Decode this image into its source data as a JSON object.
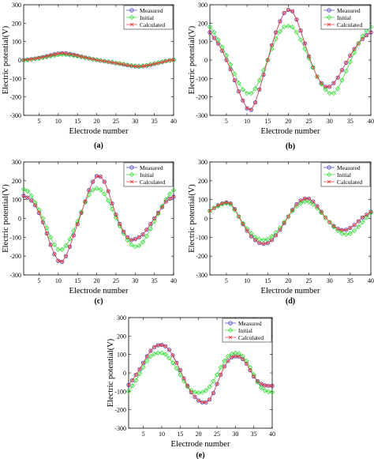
{
  "chart_data": [
    {
      "type": "line",
      "caption": "(a)",
      "xlabel": "Electrode number",
      "ylabel": "Electric potential(V)",
      "xlim": [
        1,
        40
      ],
      "ylim": [
        -300,
        300
      ],
      "xticks": [
        5,
        10,
        15,
        20,
        25,
        30,
        35,
        40
      ],
      "yticks": [
        -300,
        -200,
        -100,
        0,
        100,
        200,
        300
      ],
      "grid": false,
      "legend_position": "top-right",
      "series": [
        {
          "name": "Measured",
          "color": "#3f3fbf",
          "marker": "circle",
          "values": [
            0,
            2,
            5,
            8,
            12,
            16,
            21,
            26,
            31,
            35,
            37,
            36,
            33,
            29,
            24,
            19,
            14,
            9,
            5,
            1,
            -3,
            -6,
            -10,
            -13,
            -17,
            -20,
            -24,
            -28,
            -31,
            -34,
            -35,
            -33,
            -30,
            -26,
            -21,
            -16,
            -11,
            -6,
            -2,
            1
          ]
        },
        {
          "name": "Initial",
          "color": "#33dd33",
          "marker": "diamond",
          "values": [
            -2,
            0,
            3,
            6,
            9,
            13,
            17,
            21,
            25,
            28,
            30,
            29,
            27,
            24,
            20,
            16,
            12,
            8,
            4,
            1,
            -3,
            -6,
            -9,
            -12,
            -16,
            -19,
            -22,
            -26,
            -29,
            -32,
            -33,
            -31,
            -28,
            -24,
            -19,
            -15,
            -10,
            -6,
            -3,
            0
          ]
        },
        {
          "name": "Calculated",
          "color": "#ee3333",
          "marker": "x",
          "values": [
            0,
            2,
            5,
            8,
            12,
            16,
            21,
            26,
            31,
            35,
            37,
            36,
            33,
            29,
            24,
            19,
            14,
            9,
            5,
            1,
            -3,
            -6,
            -10,
            -13,
            -17,
            -20,
            -24,
            -28,
            -31,
            -34,
            -35,
            -33,
            -30,
            -26,
            -21,
            -16,
            -11,
            -6,
            -2,
            1
          ]
        }
      ]
    },
    {
      "type": "line",
      "caption": "(b)",
      "xlabel": "Electrode number",
      "ylabel": "Electric potential(V)",
      "xlim": [
        1,
        40
      ],
      "ylim": [
        -300,
        300
      ],
      "xticks": [
        5,
        10,
        15,
        20,
        25,
        30,
        35,
        40
      ],
      "yticks": [
        -300,
        -200,
        -100,
        0,
        100,
        200,
        300
      ],
      "grid": false,
      "legend_position": "top-right",
      "series": [
        {
          "name": "Measured",
          "color": "#3f3fbf",
          "marker": "circle",
          "values": [
            150,
            120,
            90,
            50,
            0,
            -50,
            -110,
            -170,
            -220,
            -262,
            -270,
            -230,
            -160,
            -80,
            0,
            80,
            150,
            210,
            255,
            272,
            265,
            220,
            160,
            90,
            20,
            -40,
            -90,
            -125,
            -145,
            -145,
            -125,
            -95,
            -55,
            -15,
            25,
            60,
            90,
            115,
            135,
            150
          ]
        },
        {
          "name": "Initial",
          "color": "#33dd33",
          "marker": "diamond",
          "values": [
            180,
            150,
            110,
            70,
            25,
            -25,
            -75,
            -125,
            -160,
            -180,
            -180,
            -155,
            -110,
            -55,
            0,
            60,
            115,
            155,
            180,
            185,
            178,
            150,
            110,
            60,
            10,
            -40,
            -90,
            -130,
            -160,
            -180,
            -180,
            -155,
            -110,
            -60,
            -10,
            40,
            90,
            130,
            160,
            180
          ]
        },
        {
          "name": "Calculated",
          "color": "#ee3333",
          "marker": "x",
          "values": [
            150,
            120,
            90,
            50,
            0,
            -50,
            -110,
            -170,
            -220,
            -262,
            -270,
            -230,
            -160,
            -80,
            0,
            80,
            150,
            210,
            255,
            272,
            265,
            220,
            160,
            90,
            20,
            -40,
            -90,
            -125,
            -145,
            -145,
            -125,
            -95,
            -55,
            -15,
            25,
            60,
            90,
            115,
            135,
            150
          ]
        }
      ]
    },
    {
      "type": "line",
      "caption": "(c)",
      "xlabel": "Electrode number",
      "ylabel": "Electric potential(V)",
      "xlim": [
        1,
        40
      ],
      "ylim": [
        -300,
        300
      ],
      "xticks": [
        5,
        10,
        15,
        20,
        25,
        30,
        35,
        40
      ],
      "yticks": [
        -300,
        -200,
        -100,
        0,
        100,
        200,
        300
      ],
      "grid": false,
      "legend_position": "top-right",
      "series": [
        {
          "name": "Measured",
          "color": "#3f3fbf",
          "marker": "circle",
          "values": [
            120,
            110,
            95,
            70,
            30,
            -20,
            -80,
            -140,
            -190,
            -225,
            -230,
            -200,
            -150,
            -90,
            -30,
            30,
            90,
            150,
            195,
            225,
            222,
            195,
            145,
            80,
            20,
            -30,
            -70,
            -100,
            -115,
            -110,
            -100,
            -85,
            -60,
            -30,
            0,
            30,
            60,
            90,
            105,
            115
          ]
        },
        {
          "name": "Initial",
          "color": "#33dd33",
          "marker": "diamond",
          "values": [
            155,
            145,
            120,
            85,
            45,
            0,
            -50,
            -100,
            -140,
            -165,
            -165,
            -145,
            -110,
            -65,
            -15,
            35,
            85,
            125,
            150,
            160,
            152,
            130,
            95,
            50,
            5,
            -40,
            -80,
            -115,
            -140,
            -150,
            -145,
            -125,
            -95,
            -55,
            -15,
            25,
            65,
            100,
            130,
            150
          ]
        },
        {
          "name": "Calculated",
          "color": "#ee3333",
          "marker": "x",
          "values": [
            120,
            110,
            95,
            70,
            30,
            -20,
            -80,
            -140,
            -190,
            -225,
            -230,
            -200,
            -150,
            -90,
            -30,
            30,
            90,
            150,
            195,
            225,
            222,
            195,
            145,
            80,
            20,
            -30,
            -70,
            -100,
            -115,
            -110,
            -100,
            -85,
            -60,
            -30,
            0,
            30,
            60,
            90,
            105,
            115
          ]
        }
      ]
    },
    {
      "type": "line",
      "caption": "(d)",
      "xlabel": "Electrode number",
      "ylabel": "Electric potential(V)",
      "xlim": [
        1,
        40
      ],
      "ylim": [
        -300,
        300
      ],
      "xticks": [
        5,
        10,
        15,
        20,
        25,
        30,
        35,
        40
      ],
      "yticks": [
        -300,
        -200,
        -100,
        0,
        100,
        200,
        300
      ],
      "grid": false,
      "legend_position": "top-right",
      "series": [
        {
          "name": "Measured",
          "color": "#3f3fbf",
          "marker": "circle",
          "values": [
            40,
            55,
            70,
            80,
            85,
            80,
            50,
            10,
            -30,
            -65,
            -95,
            -115,
            -130,
            -135,
            -130,
            -115,
            -90,
            -60,
            -25,
            10,
            45,
            75,
            95,
            105,
            105,
            90,
            65,
            35,
            5,
            -20,
            -40,
            -55,
            -62,
            -60,
            -50,
            -35,
            -15,
            5,
            20,
            35
          ]
        },
        {
          "name": "Initial",
          "color": "#33dd33",
          "marker": "diamond",
          "values": [
            40,
            55,
            65,
            75,
            80,
            75,
            45,
            10,
            -25,
            -55,
            -80,
            -100,
            -110,
            -115,
            -110,
            -95,
            -75,
            -50,
            -20,
            10,
            40,
            65,
            80,
            90,
            88,
            75,
            55,
            30,
            5,
            -20,
            -45,
            -65,
            -80,
            -85,
            -80,
            -65,
            -45,
            -20,
            5,
            30
          ]
        },
        {
          "name": "Calculated",
          "color": "#ee3333",
          "marker": "x",
          "values": [
            40,
            55,
            70,
            80,
            85,
            80,
            50,
            10,
            -30,
            -65,
            -95,
            -115,
            -130,
            -135,
            -130,
            -115,
            -90,
            -60,
            -25,
            10,
            45,
            75,
            95,
            105,
            105,
            90,
            65,
            35,
            5,
            -20,
            -40,
            -55,
            -62,
            -60,
            -50,
            -35,
            -15,
            5,
            20,
            35
          ]
        }
      ]
    },
    {
      "type": "line",
      "caption": "(e)",
      "xlabel": "Electrode number",
      "ylabel": "Electric potential(V)",
      "xlim": [
        1,
        40
      ],
      "ylim": [
        -300,
        300
      ],
      "xticks": [
        5,
        10,
        15,
        20,
        25,
        30,
        35,
        40
      ],
      "yticks": [
        -300,
        -200,
        -100,
        0,
        100,
        200,
        300
      ],
      "grid": false,
      "legend_position": "top-right",
      "series": [
        {
          "name": "Measured",
          "color": "#3f3fbf",
          "marker": "circle",
          "values": [
            -65,
            -40,
            -10,
            20,
            55,
            90,
            120,
            140,
            150,
            152,
            145,
            125,
            95,
            55,
            15,
            -30,
            -70,
            -105,
            -130,
            -150,
            -160,
            -160,
            -145,
            -110,
            -60,
            -10,
            35,
            65,
            85,
            90,
            88,
            75,
            50,
            15,
            -20,
            -45,
            -60,
            -68,
            -70,
            -70
          ]
        },
        {
          "name": "Initial",
          "color": "#33dd33",
          "marker": "diamond",
          "values": [
            -100,
            -70,
            -40,
            -5,
            30,
            65,
            90,
            103,
            108,
            108,
            100,
            80,
            55,
            25,
            -10,
            -45,
            -75,
            -95,
            -105,
            -108,
            -105,
            -95,
            -75,
            -45,
            -10,
            30,
            65,
            90,
            103,
            108,
            105,
            90,
            65,
            30,
            -10,
            -50,
            -80,
            -95,
            -103,
            -105
          ]
        },
        {
          "name": "Calculated",
          "color": "#ee3333",
          "marker": "x",
          "values": [
            -65,
            -40,
            -10,
            20,
            55,
            90,
            120,
            140,
            150,
            152,
            145,
            125,
            95,
            55,
            15,
            -30,
            -70,
            -105,
            -130,
            -150,
            -160,
            -160,
            -145,
            -110,
            -60,
            -10,
            35,
            65,
            85,
            90,
            88,
            75,
            50,
            15,
            -20,
            -45,
            -60,
            -68,
            -70,
            -70
          ]
        }
      ]
    }
  ]
}
